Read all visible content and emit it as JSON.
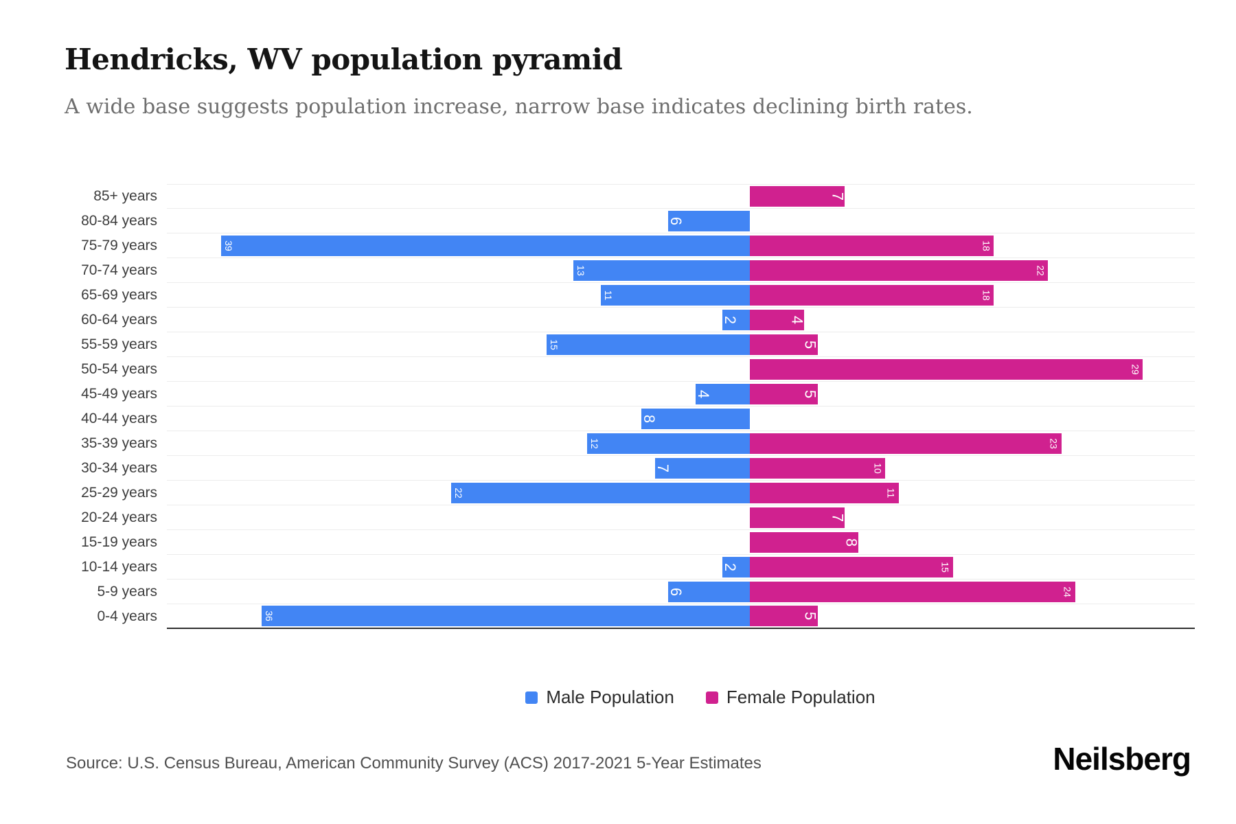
{
  "title": "Hendricks, WV population pyramid",
  "subtitle": "A wide base suggests population increase, narrow base indicates declining birth rates.",
  "source": "Source: U.S. Census Bureau, American Community Survey (ACS) 2017-2021 5-Year Estimates",
  "brand": "Neilsberg",
  "colors": {
    "male": "#4285f4",
    "female": "#d0218f",
    "gridline": "#ececec",
    "axis": "#2e2e2e"
  },
  "legend": [
    {
      "label": "Male Population",
      "color": "#4285f4"
    },
    {
      "label": "Female Population",
      "color": "#d0218f"
    }
  ],
  "chart_data": {
    "type": "bar",
    "subtype": "population-pyramid",
    "orientation": "horizontal",
    "categories": [
      "85+ years",
      "80-84 years",
      "75-79 years",
      "70-74 years",
      "65-69 years",
      "60-64 years",
      "55-59 years",
      "50-54 years",
      "45-49 years",
      "40-44 years",
      "35-39 years",
      "30-34 years",
      "25-29 years",
      "20-24 years",
      "15-19 years",
      "10-14 years",
      "5-9 years",
      "0-4 years"
    ],
    "series": [
      {
        "name": "Male Population",
        "side": "left",
        "values": [
          0,
          6,
          39,
          13,
          11,
          2,
          15,
          0,
          4,
          8,
          12,
          7,
          22,
          0,
          0,
          2,
          6,
          36
        ]
      },
      {
        "name": "Female Population",
        "side": "right",
        "values": [
          7,
          0,
          18,
          22,
          18,
          4,
          5,
          29,
          5,
          0,
          23,
          10,
          11,
          7,
          8,
          15,
          24,
          5
        ]
      }
    ],
    "value_labels": "inside-bar-rotated-90",
    "xlim_male": [
      0,
      43
    ],
    "xlim_female": [
      0,
      33
    ],
    "grid": "horizontal-only",
    "legend_position": "bottom-center"
  }
}
